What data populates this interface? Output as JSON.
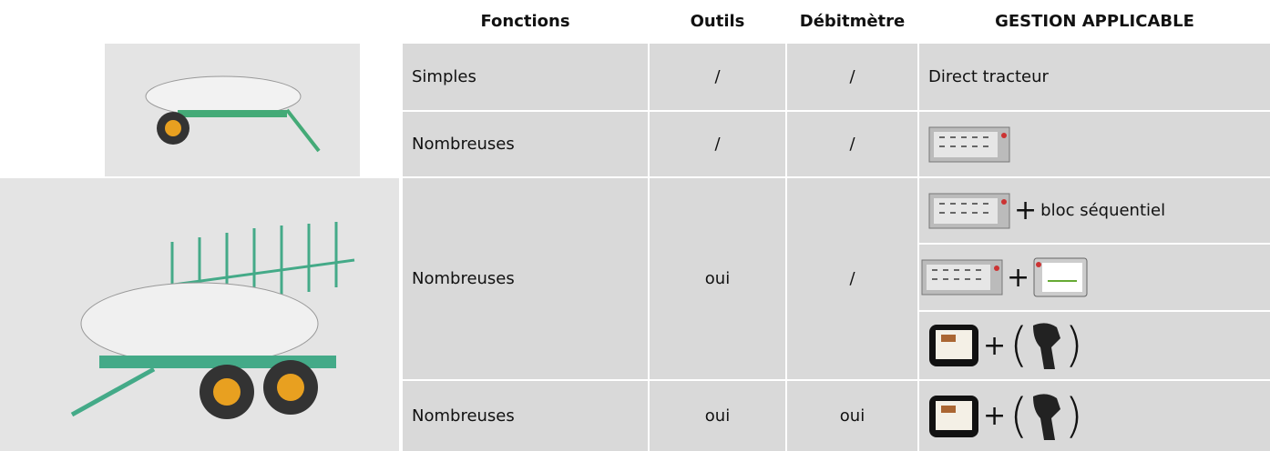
{
  "table": {
    "headers": [
      "Fonctions",
      "Outils",
      "Débitmètre",
      "GESTION APPLICABLE"
    ],
    "rows": [
      {
        "fonctions": "Simples",
        "outils": "/",
        "debitmetre": "/",
        "gestion": [
          "Direct tracteur"
        ]
      },
      {
        "fonctions": "Nombreuses",
        "outils": "/",
        "debitmetre": "/"
      },
      {
        "fonctions": "Nombreuses",
        "outils": "oui",
        "debitmetre": "/",
        "gestion": [
          {
            "plus": "+",
            "text": "bloc séquentiel"
          },
          {
            "plus": "+"
          },
          {
            "plus": "+",
            "open": "(",
            "close": ")"
          }
        ]
      },
      {
        "fonctions": "Nombreuses",
        "outils": "oui",
        "debitmetre": "oui",
        "gestion": [
          {
            "plus": "+",
            "open": "(",
            "close": ")"
          }
        ]
      }
    ]
  }
}
